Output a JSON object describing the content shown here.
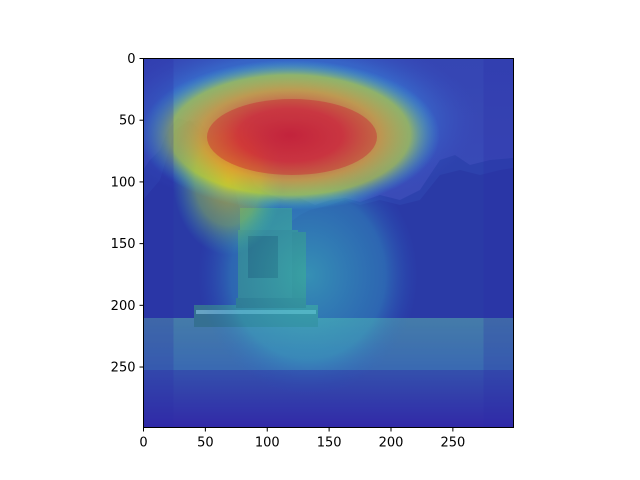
{
  "chart_data": {
    "type": "heatmap",
    "title": "",
    "xlabel": "",
    "ylabel": "",
    "xlim": [
      0,
      299
    ],
    "ylim": [
      299,
      0
    ],
    "x_ticks": [
      0,
      50,
      100,
      150,
      200,
      250
    ],
    "y_ticks": [
      0,
      50,
      100,
      150,
      200,
      250
    ],
    "x_tick_labels": [
      "0",
      "50",
      "100",
      "150",
      "200",
      "250"
    ],
    "y_tick_labels": [
      "0",
      "50",
      "100",
      "150",
      "200",
      "250"
    ],
    "colormap": "jet",
    "background_image": "green combine harvester driving through a field with trees behind",
    "grid": false,
    "hotspots": [
      {
        "x": 120,
        "y": 62,
        "rx": 80,
        "ry": 34,
        "intensity": 1.0
      },
      {
        "x": 70,
        "y": 100,
        "rx": 35,
        "ry": 40,
        "intensity": 0.55
      },
      {
        "x": 130,
        "y": 175,
        "rx": 70,
        "ry": 80,
        "intensity": 0.45
      }
    ]
  }
}
